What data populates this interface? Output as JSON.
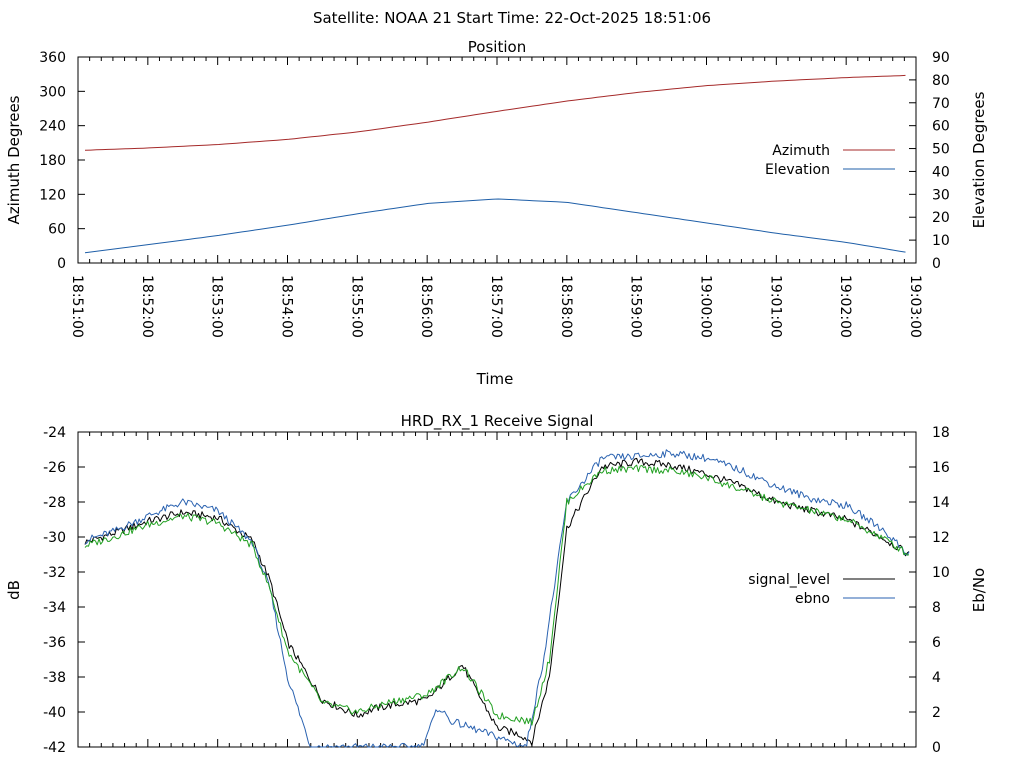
{
  "header": {
    "title": "Satellite: NOAA 21    Start Time: 22-Oct-2025 18:51:06"
  },
  "chart_data": [
    {
      "type": "line",
      "title": "Position",
      "xlabel": "Time",
      "ylabel": "Azimuth Degrees",
      "y2label": "Elevation Degrees",
      "xlim": [
        "18:51:00",
        "19:03:00"
      ],
      "ylim": [
        0,
        360
      ],
      "y2lim": [
        0,
        90
      ],
      "grid": false,
      "legend": "right",
      "xticks": [
        "18:51:00",
        "18:52:00",
        "18:53:00",
        "18:54:00",
        "18:55:00",
        "18:56:00",
        "18:57:00",
        "18:58:00",
        "18:59:00",
        "19:00:00",
        "19:01:00",
        "19:02:00",
        "19:03:00"
      ],
      "yticks": [
        "0",
        "60",
        "120",
        "180",
        "240",
        "300",
        "360"
      ],
      "y2ticks": [
        "0",
        "10",
        "20",
        "30",
        "40",
        "50",
        "60",
        "70",
        "80",
        "90"
      ],
      "series": [
        {
          "name": "Azimuth",
          "axis": "y",
          "color": "#a52a2a",
          "x": [
            "18:51:06",
            "18:52:00",
            "18:53:00",
            "18:54:00",
            "18:55:00",
            "18:56:00",
            "18:57:00",
            "18:58:00",
            "18:59:00",
            "19:00:00",
            "19:01:00",
            "19:02:00",
            "19:02:54"
          ],
          "values": [
            197,
            201,
            207,
            216,
            229,
            246,
            265,
            283,
            298,
            310,
            318,
            324,
            328
          ]
        },
        {
          "name": "Elevation",
          "axis": "y2",
          "color": "#1f5fa8",
          "x": [
            "18:51:06",
            "18:52:00",
            "18:53:00",
            "18:54:00",
            "18:55:00",
            "18:56:00",
            "18:57:00",
            "18:58:00",
            "18:59:00",
            "19:00:00",
            "19:01:00",
            "19:02:00",
            "19:02:54"
          ],
          "values": [
            4.5,
            8,
            12,
            16.5,
            21.5,
            26,
            28,
            26.5,
            22,
            17.5,
            13,
            9,
            4.5
          ]
        }
      ]
    },
    {
      "type": "line",
      "title": "HRD_RX_1 Receive Signal",
      "xlabel": "",
      "ylabel": "dB",
      "y2label": "Eb/No",
      "xlim": [
        "18:51:00",
        "19:03:00"
      ],
      "ylim": [
        -42,
        -24
      ],
      "y2lim": [
        0,
        18
      ],
      "grid": false,
      "legend": "right",
      "yticks": [
        "-42",
        "-40",
        "-38",
        "-36",
        "-34",
        "-32",
        "-30",
        "-28",
        "-26",
        "-24"
      ],
      "y2ticks": [
        "0",
        "2",
        "4",
        "6",
        "8",
        "10",
        "12",
        "14",
        "16",
        "18"
      ],
      "series": [
        {
          "name": "signal_level",
          "axis": "y",
          "color": "#000000",
          "legend_swatch": "#000000",
          "x": [
            "18:51:06",
            "18:51:30",
            "18:52:00",
            "18:52:30",
            "18:53:00",
            "18:53:30",
            "18:53:45",
            "18:54:00",
            "18:54:30",
            "18:55:00",
            "18:55:15",
            "18:55:30",
            "18:56:00",
            "18:56:30",
            "18:57:00",
            "18:57:10",
            "18:57:20",
            "18:57:30",
            "18:57:45",
            "18:58:00",
            "18:58:30",
            "18:59:00",
            "18:59:30",
            "19:00:00",
            "19:00:30",
            "19:01:00",
            "19:01:30",
            "19:02:00",
            "19:02:30",
            "19:02:54"
          ],
          "values": [
            -30.3,
            -29.8,
            -29.1,
            -28.6,
            -28.9,
            -30.2,
            -32.5,
            -36.0,
            -39.3,
            -40.2,
            -39.8,
            -39.6,
            -39.3,
            -37.3,
            -40.9,
            -41.1,
            -41.3,
            -41.7,
            -38.0,
            -29.5,
            -26.0,
            -25.7,
            -25.9,
            -26.4,
            -27.1,
            -28.0,
            -28.5,
            -29.0,
            -30.0,
            -31.0
          ]
        },
        {
          "name": "ebno",
          "axis": "y2",
          "color": "#2a62b0",
          "legend_swatch": "#2a62b0",
          "x": [
            "18:51:06",
            "18:51:30",
            "18:52:00",
            "18:52:30",
            "18:53:00",
            "18:53:30",
            "18:53:45",
            "18:54:00",
            "18:54:20",
            "18:55:55",
            "18:56:10",
            "18:56:20",
            "18:57:25",
            "18:57:40",
            "18:58:00",
            "18:58:30",
            "18:59:00",
            "18:59:30",
            "19:00:00",
            "19:00:30",
            "19:01:00",
            "19:01:30",
            "19:02:00",
            "19:02:30",
            "19:02:54"
          ],
          "values": [
            11.8,
            12.3,
            13.2,
            14.0,
            13.5,
            11.7,
            9.0,
            4.0,
            0,
            0,
            2.3,
            1.5,
            0,
            5.0,
            14.0,
            16.5,
            16.6,
            16.8,
            16.5,
            15.8,
            14.9,
            14.2,
            13.8,
            12.5,
            11.0
          ]
        },
        {
          "name": "",
          "axis": "y2",
          "color": "#22a022",
          "legend": false,
          "x": [
            "18:51:06",
            "18:51:30",
            "18:52:00",
            "18:52:30",
            "18:53:00",
            "18:53:30",
            "18:53:45",
            "18:54:00",
            "18:54:30",
            "18:55:00",
            "18:55:15",
            "18:55:30",
            "18:56:00",
            "18:56:30",
            "18:57:00",
            "18:57:10",
            "18:57:20",
            "18:57:30",
            "18:57:45",
            "18:58:00",
            "18:58:30",
            "18:59:00",
            "18:59:30",
            "19:00:00",
            "19:00:30",
            "19:01:00",
            "19:01:30",
            "19:02:00",
            "19:02:30",
            "19:02:54"
          ],
          "values": [
            11.5,
            12.0,
            12.7,
            13.2,
            12.8,
            11.5,
            9.0,
            5.5,
            2.5,
            2.0,
            2.3,
            2.6,
            3.0,
            4.6,
            1.8,
            1.7,
            1.6,
            1.4,
            5.0,
            14.0,
            15.8,
            15.9,
            15.8,
            15.4,
            14.7,
            14.0,
            13.5,
            13.0,
            12.0,
            11.0
          ]
        }
      ]
    }
  ]
}
